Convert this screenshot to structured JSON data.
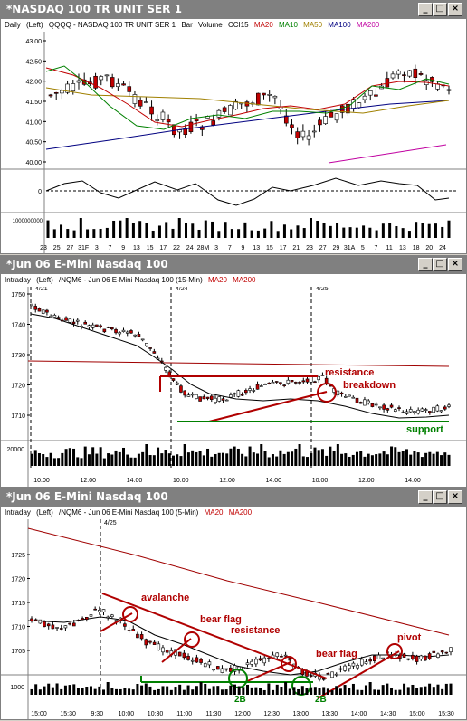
{
  "panels": [
    {
      "title": "*NASDAQ 100 TR UNIT SER 1",
      "subheader": {
        "period": "Daily",
        "scale": "(Left)",
        "symbol": "QQQQ - NASDAQ 100 TR UNIT SER 1",
        "style": "Bar",
        "volume": "Volume",
        "ind1": "CCI15",
        "ma20": "MA20",
        "ma10": "MA10",
        "ma50": "MA50",
        "ma100": "MA100",
        "ma200": "MA200"
      },
      "y_ticks": [
        "43.00",
        "42.50",
        "42.00",
        "41.50",
        "41.00",
        "40.50",
        "40.00"
      ],
      "cci_tick": "0",
      "volume_tick": "1000000000",
      "x_ticks": [
        "23",
        "25",
        "27",
        "31F",
        "3",
        "7",
        "9",
        "13",
        "15",
        "17",
        "22",
        "24",
        "28M",
        "3",
        "7",
        "9",
        "13",
        "15",
        "17",
        "21",
        "23",
        "27",
        "29",
        "31A",
        "5",
        "7",
        "11",
        "13",
        "18",
        "20",
        "24"
      ]
    },
    {
      "title": "*Jun 06  E-Mini Nasdaq 100",
      "subheader": {
        "period": "Intraday",
        "scale": "(Left)",
        "symbol": "/NQM6 - Jun 06  E-Mini Nasdaq 100 (15-Min)",
        "ma20": "MA20",
        "ma200": "MA200"
      },
      "y_ticks": [
        "1750",
        "1740",
        "1730",
        "1720",
        "1710"
      ],
      "volume_tick": "20000",
      "date_markers": [
        "4/21",
        "4/24",
        "4/25"
      ],
      "x_ticks": [
        "10:00",
        "12:00",
        "14:00",
        "10:00",
        "12:00",
        "14:00",
        "10:00",
        "12:00",
        "14:00"
      ],
      "annotations": {
        "resistance": "resistance",
        "breakdown": "breakdown",
        "support": "support"
      }
    },
    {
      "title": "*Jun 06  E-Mini Nasdaq 100",
      "subheader": {
        "period": "Intraday",
        "scale": "(Left)",
        "symbol": "/NQM6 - Jun 06  E-Mini Nasdaq 100 (5-Min)",
        "ma20": "MA20",
        "ma200": "MA200"
      },
      "y_ticks": [
        "1725",
        "1720",
        "1715",
        "1710",
        "1705"
      ],
      "volume_tick": "1000",
      "date_markers": [
        "4/25"
      ],
      "x_ticks": [
        "15:00",
        "15:30",
        "9:30",
        "10:00",
        "10:30",
        "11:00",
        "11:30",
        "12:00",
        "12:30",
        "13:00",
        "13:30",
        "14:00",
        "14:30",
        "15:00",
        "15:30"
      ],
      "annotations": {
        "avalanche": "avalanche",
        "bear_flag_1": "bear flag",
        "resistance": "resistance",
        "bear_flag_2": "bear flag",
        "pivot": "pivot",
        "twob_1": "2B",
        "twob_2": "2B"
      }
    }
  ],
  "colors": {
    "ma20": "#c00000",
    "ma10": "#008000",
    "ma50": "#a08000",
    "ma100": "#000080",
    "ma200": "#c000a0",
    "annotation": "#b00000",
    "support": "#008000",
    "candle_up": "#ffffff",
    "candle_down": "#c00000"
  },
  "icons": {
    "minimize": "minimize-icon",
    "restore": "restore-icon",
    "close": "close-icon"
  }
}
